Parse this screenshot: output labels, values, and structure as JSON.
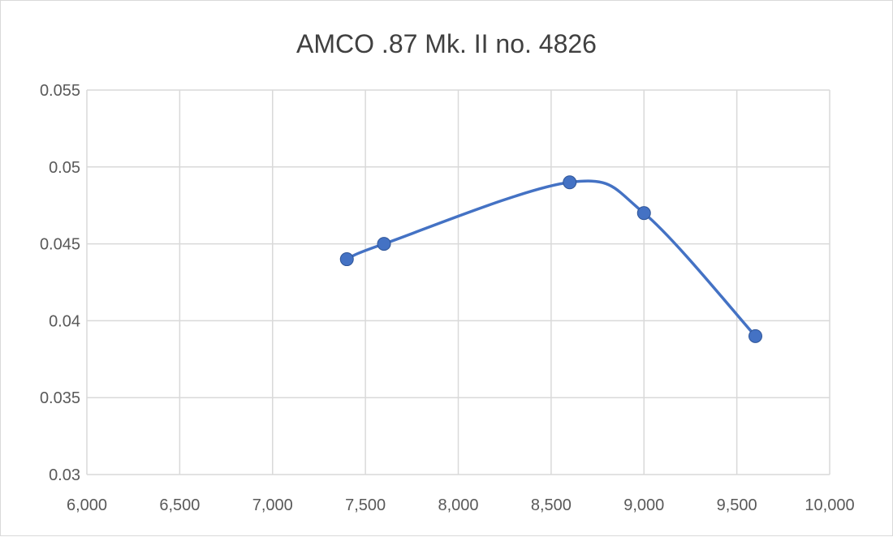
{
  "chart_data": {
    "type": "scatter",
    "title": "AMCO .87 Mk. II no. 4826",
    "xlabel": "",
    "ylabel": "",
    "xlim": [
      6000,
      10000
    ],
    "ylim": [
      0.03,
      0.055
    ],
    "x_ticks": [
      6000,
      6500,
      7000,
      7500,
      8000,
      8500,
      9000,
      9500,
      10000
    ],
    "x_tick_labels": [
      "6,000",
      "6,500",
      "7,000",
      "7,500",
      "8,000",
      "8,500",
      "9,000",
      "9,500",
      "10,000"
    ],
    "y_ticks": [
      0.03,
      0.035,
      0.04,
      0.045,
      0.05,
      0.055
    ],
    "y_tick_labels": [
      "0.03",
      "0.035",
      "0.04",
      "0.045",
      "0.05",
      "0.055"
    ],
    "grid": true,
    "legend": "none",
    "line_style": "smooth",
    "series": [
      {
        "color": "#4472c4",
        "x": [
          7400,
          7600,
          8600,
          9000,
          9600
        ],
        "y": [
          0.044,
          0.045,
          0.049,
          0.047,
          0.039
        ]
      }
    ]
  }
}
